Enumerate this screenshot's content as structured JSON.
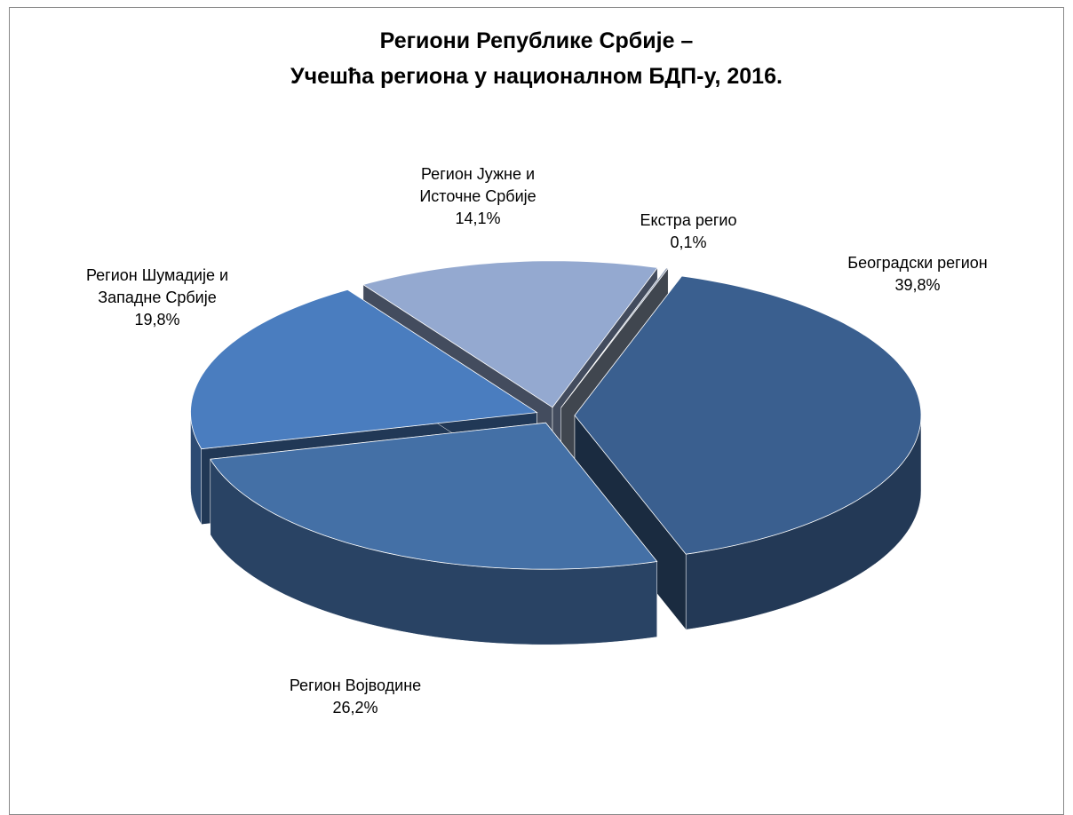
{
  "chart_data": {
    "type": "pie",
    "title": "Региони Републике Србије –",
    "subtitle": "Учешћа региона у националном БДП-у, 2016.",
    "categories": [
      "Београдски регион",
      "Регион Војводине",
      "Регион Шумадије и Западне Србије",
      "Регион Јужне и Источне Србије",
      "Екстра регио"
    ],
    "values": [
      39.8,
      26.2,
      19.8,
      14.1,
      0.1
    ],
    "value_labels": [
      "39,8%",
      "26,2%",
      "19,8%",
      "14,1%",
      "0,1%"
    ],
    "colors": [
      "#3a5f8f",
      "#4470a6",
      "#4a7dbf",
      "#94a9d0",
      "#8e9bb0"
    ]
  }
}
